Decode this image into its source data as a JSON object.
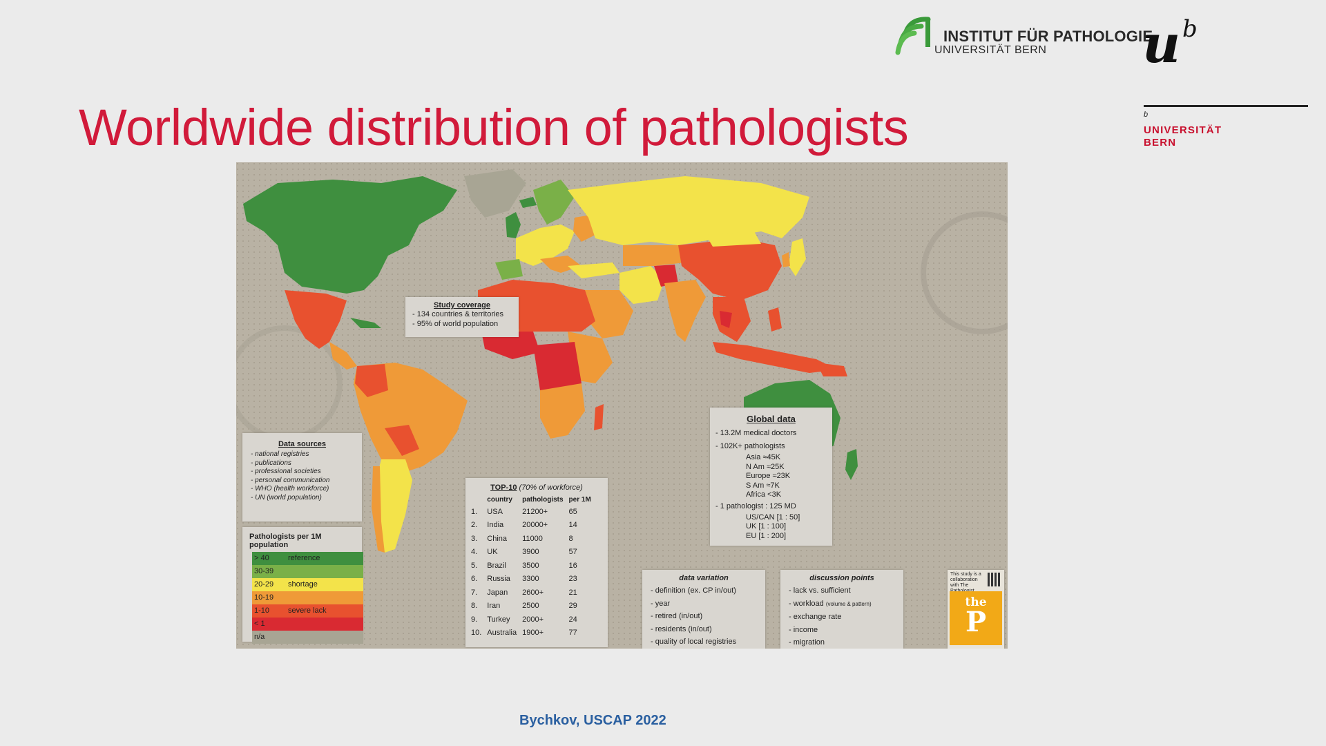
{
  "header": {
    "institute_name": "INSTITUT FÜR PATHOLOGIE",
    "institute_sub": "UNIVERSITÄT BERN",
    "uni_superscript": "b",
    "uni_monogram": "u",
    "uni_name_line1": "UNIVERSITÄT",
    "uni_name_line2": "BERN"
  },
  "title": "Worldwide distribution of pathologists",
  "map": {
    "study_coverage": {
      "heading": "Study coverage",
      "items": [
        "-  134 countries & territories",
        "-  95% of world population"
      ]
    },
    "data_sources": {
      "heading": "Data sources",
      "items": [
        "-  national registries",
        "-  publications",
        "-  professional societies",
        "-  personal communication",
        "-  WHO (health workforce)",
        "-  UN (world population)"
      ]
    },
    "legend": {
      "heading": "Pathologists per 1M population",
      "rows": [
        {
          "range": "> 40",
          "label": "reference",
          "color": "#3f8f3f"
        },
        {
          "range": "30-39",
          "label": "",
          "color": "#7ab048"
        },
        {
          "range": "20-29",
          "label": "shortage",
          "color": "#f3e34a"
        },
        {
          "range": "10-19",
          "label": "",
          "color": "#ef9a38"
        },
        {
          "range": "1-10",
          "label": "severe lack",
          "color": "#e8512f"
        },
        {
          "range": "< 1",
          "label": "",
          "color": "#d92a32"
        },
        {
          "range": "n/a",
          "label": "",
          "color": "#a8a594"
        }
      ]
    },
    "top10": {
      "heading": "TOP-10",
      "heading_note": "(70% of workforce)",
      "columns": [
        "",
        "country",
        "pathologists",
        "per 1M"
      ],
      "rows": [
        [
          "1.",
          "USA",
          "21200+",
          "65"
        ],
        [
          "2.",
          "India",
          "20000+",
          "14"
        ],
        [
          "3.",
          "China",
          "11000",
          "8"
        ],
        [
          "4.",
          "UK",
          "3900",
          "57"
        ],
        [
          "5.",
          "Brazil",
          "3500",
          "16"
        ],
        [
          "6.",
          "Russia",
          "3300",
          "23"
        ],
        [
          "7.",
          "Japan",
          "2600+",
          "21"
        ],
        [
          "8.",
          "Iran",
          "2500",
          "29"
        ],
        [
          "9.",
          "Turkey",
          "2000+",
          "24"
        ],
        [
          "10.",
          "Australia",
          "1900+",
          "77"
        ]
      ]
    },
    "global_data": {
      "heading": "Global data",
      "item1": "-     13.2M medical doctors",
      "item2": "-     102K+ pathologists",
      "regions": [
        "Asia    ≈45K",
        "N Am   ≈25K",
        "Europe ≈23K",
        "S Am    ≈7K",
        "Africa   <3K"
      ],
      "item3": "-     1 pathologist : 125 MD",
      "ratios": [
        "US/CAN [1 : 50]",
        "UK [1 : 100]",
        "EU [1 : 200]"
      ]
    },
    "data_variation": {
      "heading": "data variation",
      "items": [
        "-  definition (ex. CP in/out)",
        "-  year",
        "-  retired (in/out)",
        "-  residents (in/out)",
        "-  quality of local registries"
      ]
    },
    "discussion_points": {
      "heading": "discussion points",
      "items": [
        "-  lack vs. sufficient",
        "-  workload",
        "-  exchange rate",
        "-  income",
        "-  migration"
      ],
      "workload_note": "(volume & pattern)"
    },
    "badge": {
      "caption": "This study is a collaboration with The Pathologist",
      "word": "the",
      "letter": "P"
    }
  },
  "credit": "Bychkov, USCAP 2022"
}
